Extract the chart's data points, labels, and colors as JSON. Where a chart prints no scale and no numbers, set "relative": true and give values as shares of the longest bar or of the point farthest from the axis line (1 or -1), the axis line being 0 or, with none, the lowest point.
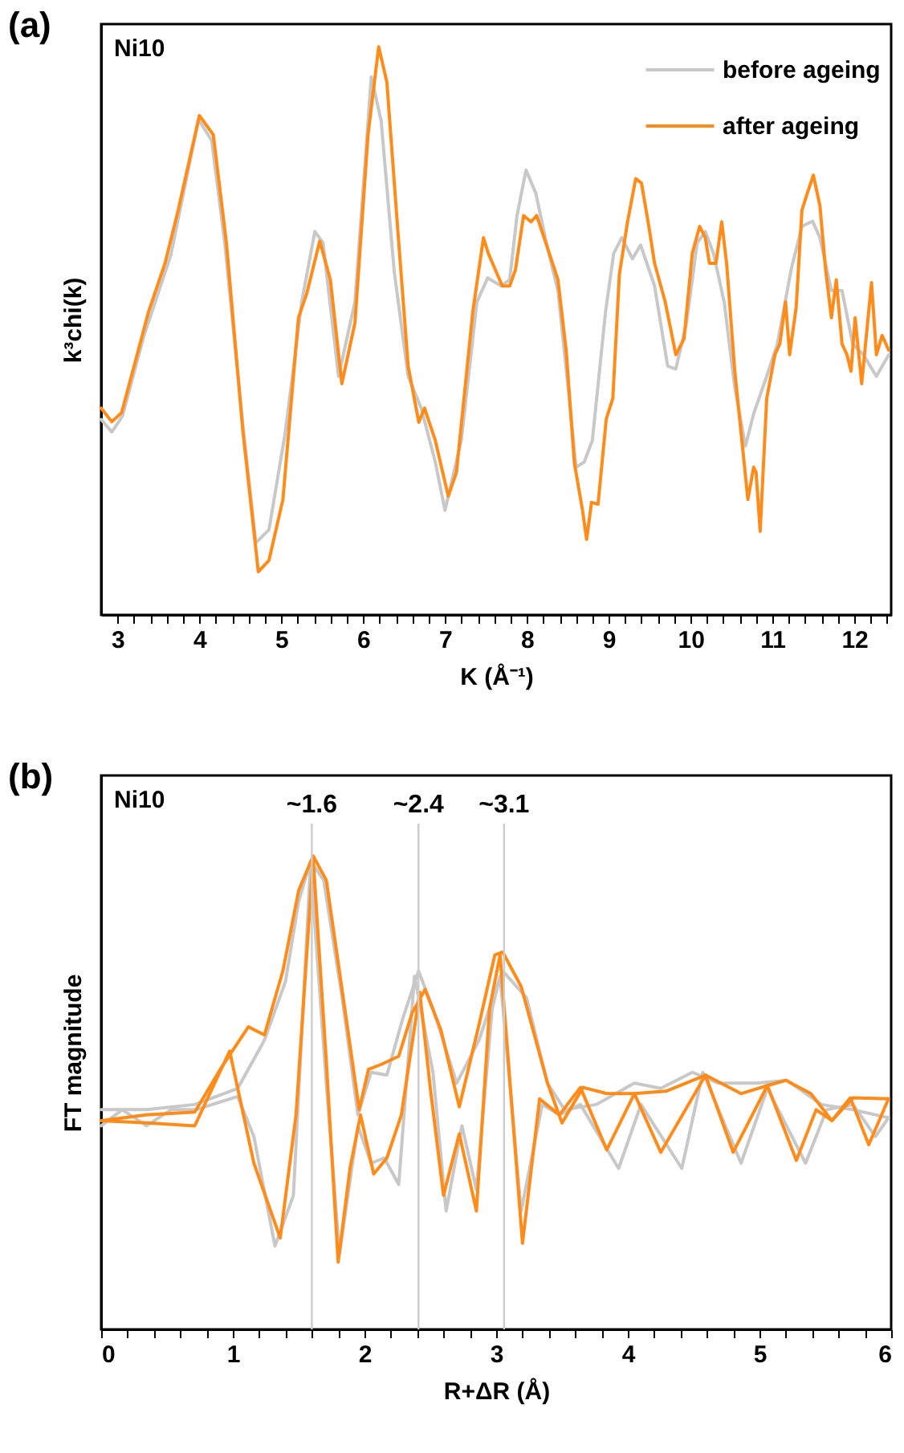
{
  "chart_data": [
    {
      "type": "line",
      "title": "(a)",
      "xlabel": "K (Å⁻¹)",
      "ylabel": "k³chi(k)",
      "relative": true,
      "legend": "top right",
      "annotations": [
        "Ni10"
      ],
      "xlim": [
        2.8,
        12.45
      ],
      "xticks": [
        3,
        {
          "value": 3.2,
          "label": null
        },
        {
          "value": 3.4,
          "label": null
        },
        {
          "value": 3.6,
          "label": null
        },
        {
          "value": 3.8,
          "label": null
        },
        4,
        {
          "value": 4.2,
          "label": null
        },
        {
          "value": 4.4,
          "label": null
        },
        {
          "value": 4.6,
          "label": null
        },
        {
          "value": 4.8,
          "label": null
        },
        5,
        {
          "value": 5.2,
          "label": null
        },
        {
          "value": 5.4,
          "label": null
        },
        {
          "value": 5.6,
          "label": null
        },
        {
          "value": 5.8,
          "label": null
        },
        6,
        {
          "value": 6.2,
          "label": null
        },
        {
          "value": 6.4,
          "label": null
        },
        {
          "value": 6.6,
          "label": null
        },
        {
          "value": 6.8,
          "label": null
        },
        7,
        {
          "value": 7.2,
          "label": null
        },
        {
          "value": 7.4,
          "label": null
        },
        {
          "value": 7.6,
          "label": null
        },
        {
          "value": 7.8,
          "label": null
        },
        8,
        {
          "value": 8.2,
          "label": null
        },
        {
          "value": 8.4,
          "label": null
        },
        {
          "value": 8.6,
          "label": null
        },
        {
          "value": 8.8,
          "label": null
        },
        9,
        {
          "value": 9.2,
          "label": null
        },
        {
          "value": 9.4,
          "label": null
        },
        {
          "value": 9.6,
          "label": null
        },
        {
          "value": 9.8,
          "label": null
        },
        10,
        {
          "value": 10.2,
          "label": null
        },
        {
          "value": 10.4,
          "label": null
        },
        {
          "value": 10.6,
          "label": null
        },
        {
          "value": 10.8,
          "label": null
        },
        11,
        {
          "value": 11.2,
          "label": null
        },
        {
          "value": 11.4,
          "label": null
        },
        {
          "value": 11.6,
          "label": null
        },
        {
          "value": 11.8,
          "label": null
        },
        12,
        {
          "value": 12.2,
          "label": null
        },
        {
          "value": 12.4,
          "label": null
        }
      ],
      "series": [
        {
          "name": "before ageing",
          "color": "#c8c8c8",
          "x": [
            2.8,
            2.93,
            3.06,
            3.32,
            3.65,
            3.99,
            4.15,
            4.31,
            4.53,
            4.69,
            4.85,
            5.05,
            5.25,
            5.41,
            5.51,
            5.7,
            5.9,
            6.1,
            6.22,
            6.38,
            6.55,
            6.71,
            6.88,
            7.0,
            7.2,
            7.39,
            7.52,
            7.69,
            7.79,
            7.88,
            7.99,
            8.11,
            8.25,
            8.38,
            8.51,
            8.6,
            8.7,
            8.8,
            8.96,
            9.06,
            9.16,
            9.29,
            9.39,
            9.56,
            9.72,
            9.82,
            9.95,
            10.08,
            10.18,
            10.28,
            10.41,
            10.54,
            10.67,
            10.77,
            10.93,
            11.06,
            11.23,
            11.36,
            11.49,
            11.58,
            11.72,
            11.85,
            11.98,
            12.11,
            12.27,
            12.42
          ],
          "values": [
            0.344,
            0.322,
            0.35,
            0.49,
            0.633,
            0.872,
            0.835,
            0.655,
            0.335,
            0.127,
            0.15,
            0.322,
            0.551,
            0.675,
            0.655,
            0.42,
            0.551,
            0.947,
            0.87,
            0.604,
            0.42,
            0.364,
            0.27,
            0.184,
            0.308,
            0.551,
            0.593,
            0.579,
            0.59,
            0.703,
            0.783,
            0.742,
            0.647,
            0.571,
            0.392,
            0.26,
            0.269,
            0.307,
            0.532,
            0.636,
            0.664,
            0.627,
            0.651,
            0.579,
            0.438,
            0.433,
            0.514,
            0.655,
            0.675,
            0.636,
            0.551,
            0.4,
            0.297,
            0.354,
            0.42,
            0.477,
            0.609,
            0.684,
            0.693,
            0.664,
            0.571,
            0.571,
            0.477,
            0.458,
            0.42,
            0.458
          ]
        },
        {
          "name": "after ageing",
          "color": "#ff8c1a",
          "x": [
            2.8,
            2.93,
            3.05,
            3.38,
            3.58,
            3.74,
            4.0,
            4.17,
            4.33,
            4.53,
            4.72,
            4.85,
            5.02,
            5.21,
            5.31,
            5.47,
            5.6,
            5.74,
            5.9,
            6.06,
            6.19,
            6.29,
            6.42,
            6.55,
            6.68,
            6.75,
            6.88,
            7.04,
            7.14,
            7.34,
            7.47,
            7.53,
            7.7,
            7.79,
            7.86,
            7.96,
            8.05,
            8.12,
            8.25,
            8.38,
            8.48,
            8.58,
            8.68,
            8.73,
            8.79,
            8.87,
            8.97,
            9.05,
            9.13,
            9.23,
            9.33,
            9.4,
            9.49,
            9.56,
            9.69,
            9.82,
            9.92,
            10.02,
            10.11,
            10.18,
            10.23,
            10.31,
            10.38,
            10.44,
            10.54,
            10.64,
            10.7,
            10.77,
            10.8,
            10.85,
            10.93,
            11.03,
            11.09,
            11.16,
            11.21,
            11.29,
            11.36,
            11.42,
            11.5,
            11.58,
            11.65,
            11.72,
            11.78,
            11.85,
            11.91,
            11.96,
            12.01,
            12.09,
            12.21,
            12.27,
            12.34,
            12.42
          ],
          "values": [
            0.364,
            0.34,
            0.356,
            0.534,
            0.619,
            0.712,
            0.879,
            0.845,
            0.655,
            0.325,
            0.076,
            0.096,
            0.203,
            0.523,
            0.565,
            0.658,
            0.59,
            0.407,
            0.514,
            0.845,
            1.0,
            0.938,
            0.684,
            0.438,
            0.339,
            0.364,
            0.308,
            0.209,
            0.251,
            0.534,
            0.664,
            0.636,
            0.579,
            0.579,
            0.607,
            0.703,
            0.692,
            0.703,
            0.647,
            0.59,
            0.466,
            0.268,
            0.184,
            0.133,
            0.198,
            0.195,
            0.345,
            0.381,
            0.599,
            0.692,
            0.768,
            0.76,
            0.684,
            0.619,
            0.551,
            0.458,
            0.486,
            0.636,
            0.684,
            0.664,
            0.619,
            0.619,
            0.692,
            0.619,
            0.429,
            0.288,
            0.203,
            0.26,
            0.251,
            0.147,
            0.381,
            0.458,
            0.477,
            0.551,
            0.458,
            0.542,
            0.712,
            0.74,
            0.774,
            0.72,
            0.607,
            0.523,
            0.59,
            0.477,
            0.458,
            0.429,
            0.523,
            0.407,
            0.585,
            0.458,
            0.492,
            0.466
          ]
        }
      ]
    },
    {
      "type": "line",
      "title": "(b)",
      "xlabel": "R+ΔR (Å)",
      "ylabel": "FT magnitude",
      "relative": true,
      "annotations": [
        "Ni10"
      ],
      "xlim": [
        0,
        6
      ],
      "xticks": [
        0,
        {
          "value": 0.2,
          "label": null
        },
        {
          "value": 0.4,
          "label": null
        },
        {
          "value": 0.6,
          "label": null
        },
        {
          "value": 0.8,
          "label": null
        },
        1,
        {
          "value": 1.2,
          "label": null
        },
        {
          "value": 1.4,
          "label": null
        },
        {
          "value": 1.6,
          "label": null
        },
        {
          "value": 1.8,
          "label": null
        },
        2,
        {
          "value": 2.2,
          "label": null
        },
        {
          "value": 2.4,
          "label": null
        },
        {
          "value": 2.6,
          "label": null
        },
        {
          "value": 2.8,
          "label": null
        },
        3,
        {
          "value": 3.2,
          "label": null
        },
        {
          "value": 3.4,
          "label": null
        },
        {
          "value": 3.6,
          "label": null
        },
        {
          "value": 3.8,
          "label": null
        },
        4,
        {
          "value": 4.2,
          "label": null
        },
        {
          "value": 4.4,
          "label": null
        },
        {
          "value": 4.6,
          "label": null
        },
        {
          "value": 4.8,
          "label": null
        },
        5,
        {
          "value": 5.2,
          "label": null
        },
        {
          "value": 5.4,
          "label": null
        },
        {
          "value": 5.6,
          "label": null
        },
        {
          "value": 5.8,
          "label": null
        },
        6
      ],
      "ref_lines": [
        {
          "axis": "x",
          "value": 1.6,
          "label": "~1.6",
          "color": "#cccccc"
        },
        {
          "axis": "x",
          "value": 2.41,
          "label": "~2.4",
          "color": "#cccccc"
        },
        {
          "axis": "x",
          "value": 3.06,
          "label": "~3.1",
          "color": "#cccccc"
        }
      ],
      "series": [
        {
          "color": "#c8c8c8",
          "x": [
            0,
            0.345,
            0.711,
            1.037,
            1.24,
            1.4,
            1.5,
            1.59,
            1.69,
            1.83,
            1.95,
            2.05,
            2.17,
            2.29,
            2.41,
            2.52,
            2.7,
            2.87,
            2.99,
            3.05,
            3.23,
            3.39,
            3.52,
            3.76,
            4.05,
            4.25,
            4.49,
            4.69,
            4.98,
            5.21,
            5.47,
            5.71,
            5.98
          ],
          "values": [
            0.464,
            0.464,
            0.475,
            0.509,
            0.611,
            0.735,
            0.904,
            0.989,
            0.949,
            0.701,
            0.453,
            0.543,
            0.537,
            0.656,
            0.757,
            0.678,
            0.52,
            0.611,
            0.712,
            0.757,
            0.701,
            0.52,
            0.464,
            0.475,
            0.52,
            0.509,
            0.543,
            0.52,
            0.52,
            0.526,
            0.475,
            0.464,
            0.447
          ]
        },
        {
          "color": "#c8c8c8",
          "x": [
            0,
            0.16,
            0.345,
            0.53,
            0.72,
            1.037,
            1.16,
            1.32,
            1.46,
            1.59,
            1.71,
            1.81,
            1.95,
            2.05,
            2.15,
            2.26,
            2.38,
            2.52,
            2.62,
            2.74,
            2.85,
            2.97,
            3.03,
            3.19,
            3.35,
            3.48,
            3.64,
            3.93,
            4.1,
            4.41,
            4.57,
            4.86,
            5.06,
            5.35,
            5.51,
            5.71,
            5.88,
            5.98
          ],
          "values": [
            0.43,
            0.464,
            0.43,
            0.464,
            0.464,
            0.492,
            0.407,
            0.176,
            0.283,
            0.983,
            0.52,
            0.159,
            0.43,
            0.351,
            0.362,
            0.306,
            0.746,
            0.543,
            0.25,
            0.43,
            0.295,
            0.678,
            0.746,
            0.25,
            0.475,
            0.453,
            0.475,
            0.34,
            0.475,
            0.34,
            0.543,
            0.351,
            0.509,
            0.351,
            0.464,
            0.475,
            0.407,
            0.447
          ]
        },
        {
          "color": "#ff8c1a",
          "x": [
            0,
            0.345,
            0.711,
            0.915,
            1.118,
            1.24,
            1.38,
            1.5,
            1.61,
            1.71,
            1.85,
            1.96,
            2.03,
            2.13,
            2.26,
            2.36,
            2.46,
            2.58,
            2.72,
            2.87,
            2.99,
            3.05,
            3.19,
            3.39,
            3.5,
            3.66,
            3.84,
            4.05,
            4.29,
            4.59,
            4.86,
            5.06,
            5.2,
            5.39,
            5.55,
            5.71,
            5.98
          ],
          "values": [
            0.441,
            0.453,
            0.459,
            0.554,
            0.639,
            0.622,
            0.757,
            0.927,
            1.0,
            0.949,
            0.678,
            0.464,
            0.549,
            0.56,
            0.577,
            0.667,
            0.718,
            0.633,
            0.47,
            0.644,
            0.791,
            0.797,
            0.724,
            0.52,
            0.436,
            0.511,
            0.498,
            0.498,
            0.503,
            0.537,
            0.498,
            0.515,
            0.526,
            0.498,
            0.441,
            0.489,
            0.487
          ]
        },
        {
          "color": "#ff8c1a",
          "x": [
            0,
            0.345,
            0.711,
            0.976,
            1.16,
            1.36,
            1.48,
            1.61,
            1.71,
            1.8,
            1.89,
            1.97,
            2.07,
            2.17,
            2.28,
            2.42,
            2.5,
            2.6,
            2.72,
            2.85,
            2.95,
            3.03,
            3.2,
            3.33,
            3.48,
            3.64,
            3.84,
            4.05,
            4.25,
            4.59,
            4.8,
            5.06,
            5.28,
            5.43,
            5.55,
            5.69,
            5.83,
            5.98
          ],
          "values": [
            0.441,
            0.436,
            0.43,
            0.588,
            0.351,
            0.193,
            0.453,
            0.995,
            0.566,
            0.142,
            0.34,
            0.453,
            0.328,
            0.362,
            0.453,
            0.712,
            0.509,
            0.283,
            0.413,
            0.25,
            0.678,
            0.791,
            0.182,
            0.487,
            0.453,
            0.511,
            0.379,
            0.498,
            0.374,
            0.537,
            0.374,
            0.515,
            0.357,
            0.464,
            0.441,
            0.489,
            0.39,
            0.487
          ]
        }
      ]
    }
  ]
}
